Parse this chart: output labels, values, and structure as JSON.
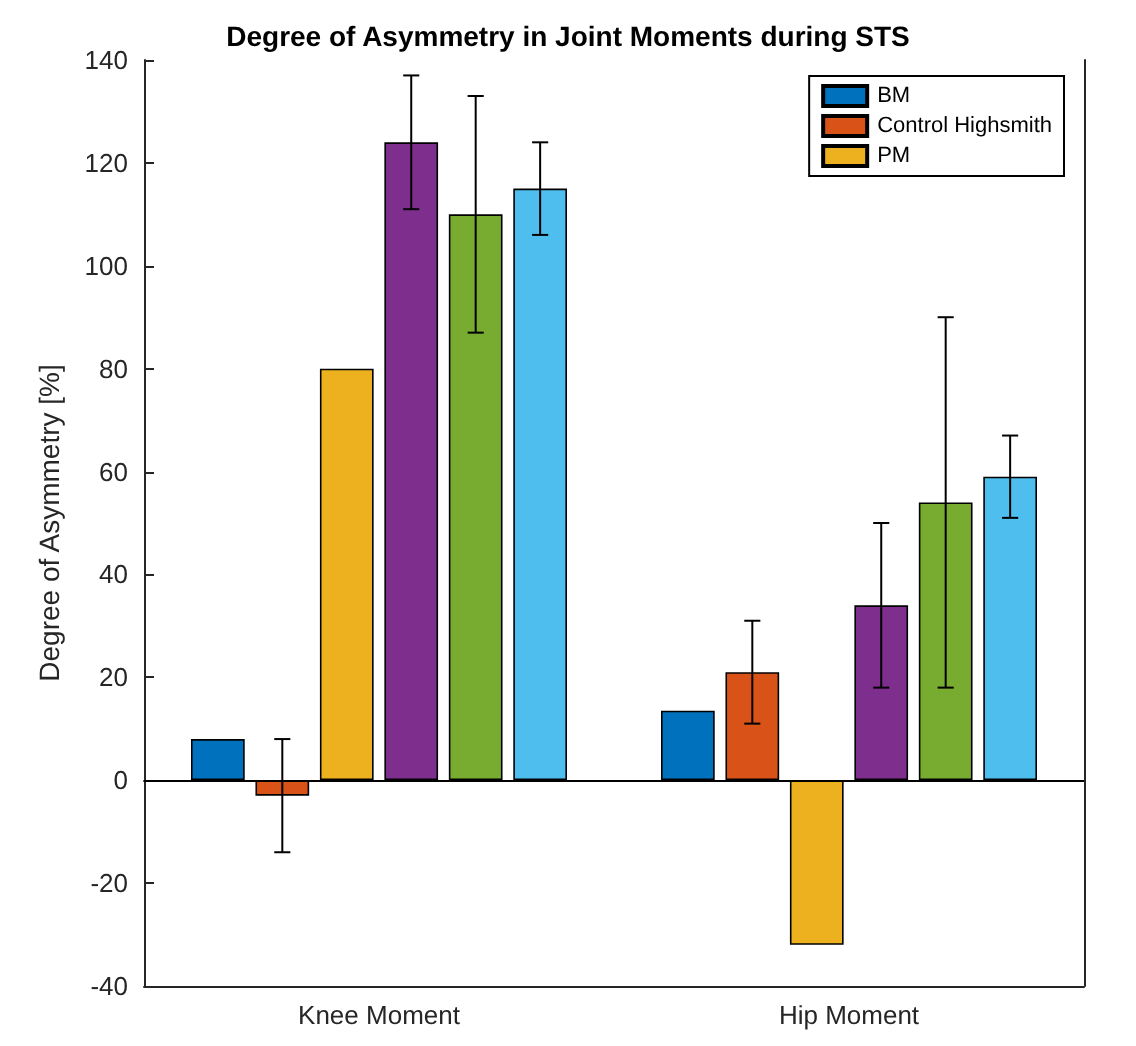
{
  "chart_data": {
    "type": "bar",
    "title": "Degree of Asymmetry in Joint Moments during STS",
    "ylabel": "Degree of Asymmetry [%]",
    "categories": [
      "Knee Moment",
      "Hip Moment"
    ],
    "series": [
      {
        "name": "BM",
        "color": "#0072bd",
        "values": [
          8,
          13.5
        ]
      },
      {
        "name": "Control Highsmith",
        "color": "#d95319",
        "values": [
          -3,
          21
        ],
        "errors": [
          [
            -14,
            8
          ],
          [
            11,
            31
          ]
        ]
      },
      {
        "name": "PM",
        "color": "#edb120",
        "values": [
          80,
          -32
        ]
      },
      {
        "color": "#7e2f8e",
        "values": [
          124,
          34
        ],
        "errors": [
          [
            111,
            137
          ],
          [
            18,
            50
          ]
        ]
      },
      {
        "color": "#77ac30",
        "values": [
          110,
          54
        ],
        "errors": [
          [
            87,
            133
          ],
          [
            18,
            90
          ]
        ]
      },
      {
        "color": "#4dbeee",
        "values": [
          115,
          59
        ],
        "errors": [
          [
            106,
            124
          ],
          [
            51,
            67
          ]
        ]
      }
    ],
    "ylim": [
      -40,
      140
    ],
    "yticks": [
      -40,
      -20,
      0,
      20,
      40,
      60,
      80,
      100,
      120,
      140
    ],
    "ref_lines": [
      {
        "axis": "y",
        "value": 0,
        "color": "#000000"
      }
    ],
    "grid": false,
    "legend": "top right"
  }
}
